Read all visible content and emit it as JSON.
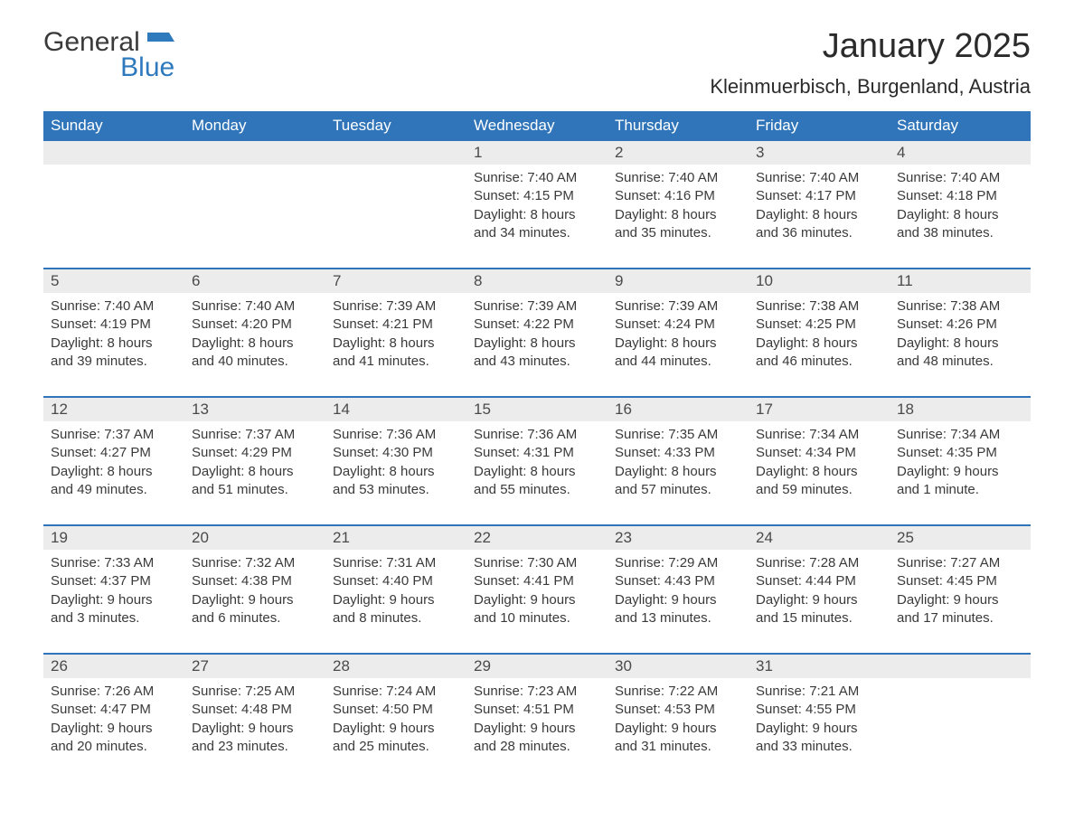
{
  "logo": {
    "text1": "General",
    "text2": "Blue",
    "flag_color": "#2f79bd",
    "text1_color": "#3a3a3a"
  },
  "title": "January 2025",
  "location": "Kleinmuerbisch, Burgenland, Austria",
  "colors": {
    "header_bg": "#3075b9",
    "header_text": "#ffffff",
    "daynum_bg": "#ececec",
    "week_border": "#3075b9",
    "body_text": "#3a3a3a",
    "background": "#ffffff"
  },
  "fonts": {
    "title_pt": 38,
    "location_pt": 22,
    "header_pt": 17,
    "daynum_pt": 17,
    "cell_pt": 15
  },
  "day_headers": [
    "Sunday",
    "Monday",
    "Tuesday",
    "Wednesday",
    "Thursday",
    "Friday",
    "Saturday"
  ],
  "weeks": [
    {
      "numbers": [
        "",
        "",
        "",
        "1",
        "2",
        "3",
        "4"
      ],
      "cells": [
        null,
        null,
        null,
        {
          "sunrise": "Sunrise: 7:40 AM",
          "sunset": "Sunset: 4:15 PM",
          "day1": "Daylight: 8 hours",
          "day2": "and 34 minutes."
        },
        {
          "sunrise": "Sunrise: 7:40 AM",
          "sunset": "Sunset: 4:16 PM",
          "day1": "Daylight: 8 hours",
          "day2": "and 35 minutes."
        },
        {
          "sunrise": "Sunrise: 7:40 AM",
          "sunset": "Sunset: 4:17 PM",
          "day1": "Daylight: 8 hours",
          "day2": "and 36 minutes."
        },
        {
          "sunrise": "Sunrise: 7:40 AM",
          "sunset": "Sunset: 4:18 PM",
          "day1": "Daylight: 8 hours",
          "day2": "and 38 minutes."
        }
      ]
    },
    {
      "numbers": [
        "5",
        "6",
        "7",
        "8",
        "9",
        "10",
        "11"
      ],
      "cells": [
        {
          "sunrise": "Sunrise: 7:40 AM",
          "sunset": "Sunset: 4:19 PM",
          "day1": "Daylight: 8 hours",
          "day2": "and 39 minutes."
        },
        {
          "sunrise": "Sunrise: 7:40 AM",
          "sunset": "Sunset: 4:20 PM",
          "day1": "Daylight: 8 hours",
          "day2": "and 40 minutes."
        },
        {
          "sunrise": "Sunrise: 7:39 AM",
          "sunset": "Sunset: 4:21 PM",
          "day1": "Daylight: 8 hours",
          "day2": "and 41 minutes."
        },
        {
          "sunrise": "Sunrise: 7:39 AM",
          "sunset": "Sunset: 4:22 PM",
          "day1": "Daylight: 8 hours",
          "day2": "and 43 minutes."
        },
        {
          "sunrise": "Sunrise: 7:39 AM",
          "sunset": "Sunset: 4:24 PM",
          "day1": "Daylight: 8 hours",
          "day2": "and 44 minutes."
        },
        {
          "sunrise": "Sunrise: 7:38 AM",
          "sunset": "Sunset: 4:25 PM",
          "day1": "Daylight: 8 hours",
          "day2": "and 46 minutes."
        },
        {
          "sunrise": "Sunrise: 7:38 AM",
          "sunset": "Sunset: 4:26 PM",
          "day1": "Daylight: 8 hours",
          "day2": "and 48 minutes."
        }
      ]
    },
    {
      "numbers": [
        "12",
        "13",
        "14",
        "15",
        "16",
        "17",
        "18"
      ],
      "cells": [
        {
          "sunrise": "Sunrise: 7:37 AM",
          "sunset": "Sunset: 4:27 PM",
          "day1": "Daylight: 8 hours",
          "day2": "and 49 minutes."
        },
        {
          "sunrise": "Sunrise: 7:37 AM",
          "sunset": "Sunset: 4:29 PM",
          "day1": "Daylight: 8 hours",
          "day2": "and 51 minutes."
        },
        {
          "sunrise": "Sunrise: 7:36 AM",
          "sunset": "Sunset: 4:30 PM",
          "day1": "Daylight: 8 hours",
          "day2": "and 53 minutes."
        },
        {
          "sunrise": "Sunrise: 7:36 AM",
          "sunset": "Sunset: 4:31 PM",
          "day1": "Daylight: 8 hours",
          "day2": "and 55 minutes."
        },
        {
          "sunrise": "Sunrise: 7:35 AM",
          "sunset": "Sunset: 4:33 PM",
          "day1": "Daylight: 8 hours",
          "day2": "and 57 minutes."
        },
        {
          "sunrise": "Sunrise: 7:34 AM",
          "sunset": "Sunset: 4:34 PM",
          "day1": "Daylight: 8 hours",
          "day2": "and 59 minutes."
        },
        {
          "sunrise": "Sunrise: 7:34 AM",
          "sunset": "Sunset: 4:35 PM",
          "day1": "Daylight: 9 hours",
          "day2": "and 1 minute."
        }
      ]
    },
    {
      "numbers": [
        "19",
        "20",
        "21",
        "22",
        "23",
        "24",
        "25"
      ],
      "cells": [
        {
          "sunrise": "Sunrise: 7:33 AM",
          "sunset": "Sunset: 4:37 PM",
          "day1": "Daylight: 9 hours",
          "day2": "and 3 minutes."
        },
        {
          "sunrise": "Sunrise: 7:32 AM",
          "sunset": "Sunset: 4:38 PM",
          "day1": "Daylight: 9 hours",
          "day2": "and 6 minutes."
        },
        {
          "sunrise": "Sunrise: 7:31 AM",
          "sunset": "Sunset: 4:40 PM",
          "day1": "Daylight: 9 hours",
          "day2": "and 8 minutes."
        },
        {
          "sunrise": "Sunrise: 7:30 AM",
          "sunset": "Sunset: 4:41 PM",
          "day1": "Daylight: 9 hours",
          "day2": "and 10 minutes."
        },
        {
          "sunrise": "Sunrise: 7:29 AM",
          "sunset": "Sunset: 4:43 PM",
          "day1": "Daylight: 9 hours",
          "day2": "and 13 minutes."
        },
        {
          "sunrise": "Sunrise: 7:28 AM",
          "sunset": "Sunset: 4:44 PM",
          "day1": "Daylight: 9 hours",
          "day2": "and 15 minutes."
        },
        {
          "sunrise": "Sunrise: 7:27 AM",
          "sunset": "Sunset: 4:45 PM",
          "day1": "Daylight: 9 hours",
          "day2": "and 17 minutes."
        }
      ]
    },
    {
      "numbers": [
        "26",
        "27",
        "28",
        "29",
        "30",
        "31",
        ""
      ],
      "cells": [
        {
          "sunrise": "Sunrise: 7:26 AM",
          "sunset": "Sunset: 4:47 PM",
          "day1": "Daylight: 9 hours",
          "day2": "and 20 minutes."
        },
        {
          "sunrise": "Sunrise: 7:25 AM",
          "sunset": "Sunset: 4:48 PM",
          "day1": "Daylight: 9 hours",
          "day2": "and 23 minutes."
        },
        {
          "sunrise": "Sunrise: 7:24 AM",
          "sunset": "Sunset: 4:50 PM",
          "day1": "Daylight: 9 hours",
          "day2": "and 25 minutes."
        },
        {
          "sunrise": "Sunrise: 7:23 AM",
          "sunset": "Sunset: 4:51 PM",
          "day1": "Daylight: 9 hours",
          "day2": "and 28 minutes."
        },
        {
          "sunrise": "Sunrise: 7:22 AM",
          "sunset": "Sunset: 4:53 PM",
          "day1": "Daylight: 9 hours",
          "day2": "and 31 minutes."
        },
        {
          "sunrise": "Sunrise: 7:21 AM",
          "sunset": "Sunset: 4:55 PM",
          "day1": "Daylight: 9 hours",
          "day2": "and 33 minutes."
        },
        null
      ]
    }
  ]
}
